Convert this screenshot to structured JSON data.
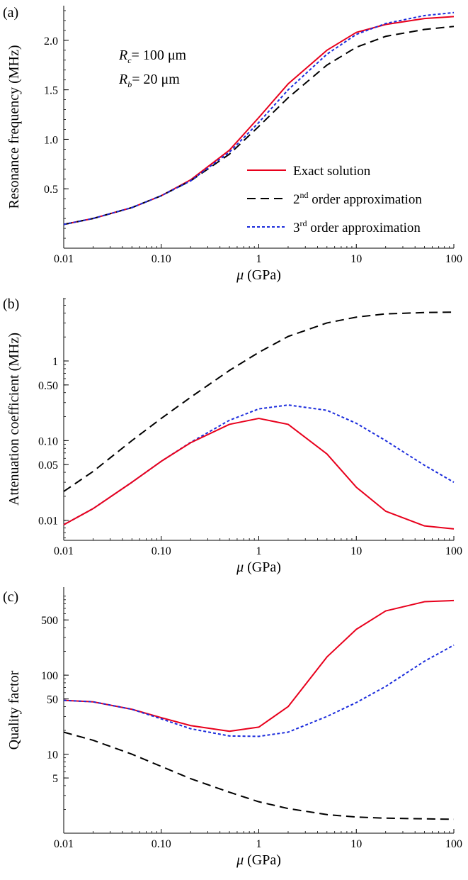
{
  "chart_data": [
    {
      "panel_label": "(a)",
      "type": "line",
      "xlabel": "μ (GPa)",
      "ylabel": "Resonance frequency (MHz)",
      "xscale": "log",
      "yscale": "linear",
      "xlim": [
        0.01,
        100
      ],
      "ylim": [
        -0.1,
        2.35
      ],
      "xticks": [
        0.01,
        0.1,
        1,
        10,
        100
      ],
      "xtick_labels": [
        "0.01",
        "0.10",
        "1",
        "10",
        "100"
      ],
      "yticks": [
        0.5,
        1.0,
        1.5,
        2.0
      ],
      "ytick_labels": [
        "0.5",
        "1.0",
        "1.5",
        "2.0"
      ],
      "annotations": [
        {
          "base": "R",
          "sub": "c",
          "rest": "= 100 μm"
        },
        {
          "base": "R",
          "sub": "b",
          "rest": "= 20 μm"
        }
      ],
      "legend": [
        {
          "pre": "Exact solution",
          "sup": "",
          "post": ""
        },
        {
          "pre": "2",
          "sup": "nd",
          "post": " order approximation"
        },
        {
          "pre": "3",
          "sup": "rd",
          "post": " order approximation"
        }
      ],
      "legend_position": "lower-right",
      "series": [
        {
          "color": "#e8001c",
          "style": "solid",
          "x": [
            0.01,
            0.02,
            0.05,
            0.1,
            0.2,
            0.5,
            1,
            2,
            5,
            10,
            20,
            50,
            100
          ],
          "y": [
            0.14,
            0.2,
            0.31,
            0.43,
            0.59,
            0.89,
            1.22,
            1.56,
            1.9,
            2.08,
            2.16,
            2.22,
            2.24
          ]
        },
        {
          "color": "#000000",
          "style": "dashed",
          "x": [
            0.01,
            0.02,
            0.05,
            0.1,
            0.2,
            0.5,
            1,
            2,
            5,
            10,
            20,
            50,
            100
          ],
          "y": [
            0.14,
            0.2,
            0.31,
            0.43,
            0.58,
            0.85,
            1.13,
            1.42,
            1.75,
            1.93,
            2.04,
            2.11,
            2.14
          ]
        },
        {
          "color": "#1a2bdc",
          "style": "dotted",
          "x": [
            0.01,
            0.02,
            0.05,
            0.1,
            0.2,
            0.5,
            1,
            2,
            5,
            10,
            20,
            50,
            100
          ],
          "y": [
            0.14,
            0.2,
            0.31,
            0.43,
            0.58,
            0.87,
            1.17,
            1.5,
            1.86,
            2.06,
            2.17,
            2.25,
            2.28
          ]
        }
      ]
    },
    {
      "panel_label": "(b)",
      "type": "line",
      "xlabel": "μ (GPa)",
      "ylabel": "Attenuation coefficient (MHz)",
      "xscale": "log",
      "yscale": "log",
      "xlim": [
        0.01,
        100
      ],
      "ylim": [
        0.0056,
        6.2
      ],
      "xticks": [
        0.01,
        0.1,
        1,
        10,
        100
      ],
      "xtick_labels": [
        "0.01",
        "0.10",
        "1",
        "10",
        "100"
      ],
      "yticks": [
        0.01,
        0.05,
        0.1,
        0.5,
        1
      ],
      "ytick_labels": [
        "0.01",
        "0.05",
        "0.10",
        "0.50",
        "1"
      ],
      "series": [
        {
          "color": "#000000",
          "style": "dashed",
          "x": [
            0.01,
            0.02,
            0.05,
            0.1,
            0.2,
            0.5,
            1,
            2,
            5,
            10,
            20,
            50,
            100
          ],
          "y": [
            0.023,
            0.041,
            0.1,
            0.19,
            0.35,
            0.76,
            1.28,
            2.03,
            3.0,
            3.55,
            3.9,
            4.05,
            4.1
          ]
        },
        {
          "color": "#1a2bdc",
          "style": "dotted",
          "x": [
            0.01,
            0.02,
            0.05,
            0.1,
            0.2,
            0.5,
            1,
            2,
            5,
            10,
            20,
            50,
            100
          ],
          "y": [
            0.0088,
            0.014,
            0.03,
            0.055,
            0.095,
            0.18,
            0.25,
            0.28,
            0.24,
            0.165,
            0.1,
            0.049,
            0.03
          ]
        },
        {
          "color": "#e8001c",
          "style": "solid",
          "x": [
            0.01,
            0.02,
            0.05,
            0.1,
            0.2,
            0.5,
            1,
            2,
            5,
            10,
            20,
            50,
            100
          ],
          "y": [
            0.0088,
            0.014,
            0.03,
            0.055,
            0.094,
            0.16,
            0.19,
            0.16,
            0.068,
            0.026,
            0.013,
            0.0085,
            0.0078
          ]
        }
      ]
    },
    {
      "panel_label": "(c)",
      "type": "line",
      "xlabel": "μ (GPa)",
      "ylabel": "Quality factor",
      "xscale": "log",
      "yscale": "log",
      "xlim": [
        0.01,
        100
      ],
      "ylim": [
        1.0,
        1300
      ],
      "xticks": [
        0.01,
        0.1,
        1,
        10,
        100
      ],
      "xtick_labels": [
        "0.01",
        "0.10",
        "1",
        "10",
        "100"
      ],
      "yticks": [
        5,
        10,
        50,
        100,
        500
      ],
      "ytick_labels": [
        "5",
        "10",
        "50",
        "100",
        "500"
      ],
      "series": [
        {
          "color": "#e8001c",
          "style": "solid",
          "x": [
            0.01,
            0.02,
            0.05,
            0.1,
            0.2,
            0.5,
            1,
            2,
            5,
            10,
            20,
            50,
            100
          ],
          "y": [
            48,
            46,
            37,
            29,
            23,
            19.5,
            22,
            40,
            170,
            380,
            650,
            850,
            880
          ]
        },
        {
          "color": "#1a2bdc",
          "style": "dotted",
          "x": [
            0.01,
            0.02,
            0.05,
            0.1,
            0.2,
            0.5,
            1,
            2,
            5,
            10,
            20,
            50,
            100
          ],
          "y": [
            48,
            46,
            37,
            28,
            21,
            17,
            16.8,
            19,
            30,
            45,
            72,
            150,
            240
          ]
        },
        {
          "color": "#000000",
          "style": "dashed",
          "x": [
            0.01,
            0.02,
            0.05,
            0.1,
            0.2,
            0.5,
            1,
            2,
            5,
            10,
            20,
            50,
            100
          ],
          "y": [
            19,
            15,
            10,
            7,
            4.9,
            3.3,
            2.5,
            2.05,
            1.72,
            1.6,
            1.55,
            1.52,
            1.5
          ]
        }
      ]
    }
  ]
}
